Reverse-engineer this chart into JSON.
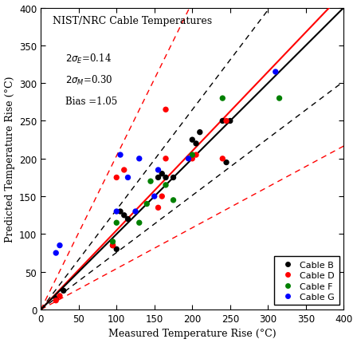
{
  "title": "NIST/NRC Cable Temperatures",
  "xlabel": "Measured Temperature Rise (°C)",
  "ylabel": "Predicted Temperature Rise (°C)",
  "xlim": [
    0,
    400
  ],
  "ylim": [
    0,
    400
  ],
  "xticks": [
    0,
    50,
    100,
    150,
    200,
    250,
    300,
    350,
    400
  ],
  "yticks": [
    0,
    50,
    100,
    150,
    200,
    250,
    300,
    350,
    400
  ],
  "sigma_E": 0.14,
  "sigma_M": 0.3,
  "bias": 1.05,
  "background_color": "white",
  "cable_B": {
    "color": "black",
    "x": [
      20,
      30,
      95,
      100,
      105,
      110,
      115,
      155,
      160,
      165,
      175,
      200,
      205,
      210,
      240,
      245,
      250
    ],
    "y": [
      15,
      25,
      85,
      80,
      130,
      125,
      120,
      175,
      180,
      175,
      175,
      225,
      220,
      235,
      250,
      195,
      250
    ]
  },
  "cable_D": {
    "color": "red",
    "x": [
      20,
      25,
      95,
      100,
      110,
      155,
      160,
      165,
      165,
      200,
      205,
      240,
      245
    ],
    "y": [
      12,
      18,
      85,
      175,
      185,
      135,
      150,
      265,
      200,
      200,
      205,
      200,
      250
    ]
  },
  "cable_F": {
    "color": "green",
    "x": [
      95,
      100,
      130,
      140,
      145,
      165,
      175,
      200,
      240,
      315
    ],
    "y": [
      90,
      115,
      115,
      140,
      170,
      165,
      145,
      205,
      280,
      280
    ]
  },
  "cable_G": {
    "color": "blue",
    "x": [
      20,
      25,
      100,
      105,
      115,
      125,
      130,
      150,
      155,
      195,
      310
    ],
    "y": [
      75,
      85,
      130,
      205,
      175,
      130,
      200,
      150,
      185,
      200,
      315
    ]
  }
}
